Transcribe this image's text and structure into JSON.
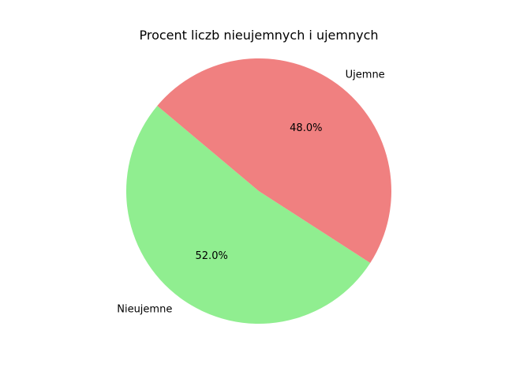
{
  "chart_data": {
    "type": "pie",
    "title": "Procent liczb nieujemnych i ujemnych",
    "slices": [
      {
        "label": "Nieujemne",
        "value": 52.0,
        "percent_label": "52.0%",
        "color": "#90ee90"
      },
      {
        "label": "Ujemne",
        "value": 48.0,
        "percent_label": "48.0%",
        "color": "#f08080"
      }
    ],
    "start_angle_deg": 140,
    "direction": "counterclockwise",
    "legend": "none"
  }
}
